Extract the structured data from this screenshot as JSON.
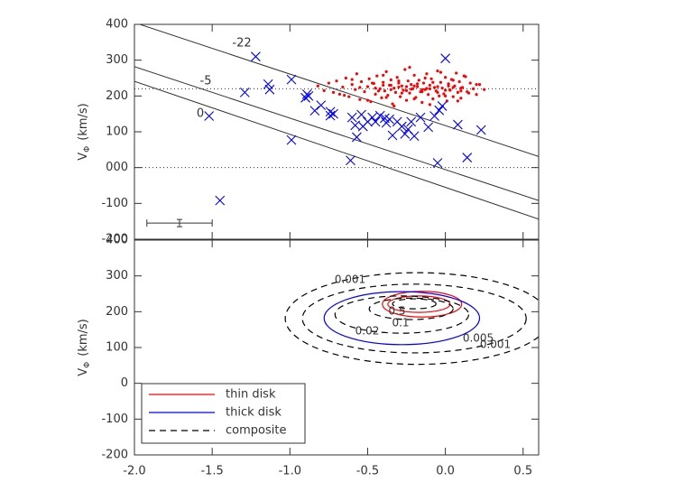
{
  "chart_data": [
    {
      "type": "scatter",
      "xlim": [
        -2.0,
        0.6
      ],
      "ylim": [
        -200,
        400
      ],
      "xticks": [
        -2.0,
        -1.5,
        -1.0,
        -0.5,
        0.0,
        0.5
      ],
      "yticks": [
        -200,
        -100,
        {
          "value": 0,
          "label": "000"
        },
        100,
        200,
        300,
        400
      ],
      "ylabel_symbol": "V",
      "ylabel_subscript": "Φ",
      "ylabel_unit": "(km/s)",
      "series": [
        {
          "color": "#ff0000",
          "marker": "dot",
          "x": [
            -0.82,
            -0.78,
            -0.75,
            -0.72,
            -0.7,
            -0.68,
            -0.66,
            -0.64,
            -0.62,
            -0.6,
            -0.58,
            -0.57,
            -0.55,
            -0.54,
            -0.52,
            -0.5,
            -0.49,
            -0.48,
            -0.46,
            -0.45,
            -0.44,
            -0.42,
            -0.41,
            -0.4,
            -0.39,
            -0.38,
            -0.37,
            -0.36,
            -0.35,
            -0.34,
            -0.33,
            -0.32,
            -0.31,
            -0.3,
            -0.29,
            -0.28,
            -0.27,
            -0.26,
            -0.25,
            -0.24,
            -0.23,
            -0.22,
            -0.21,
            -0.2,
            -0.19,
            -0.18,
            -0.17,
            -0.16,
            -0.15,
            -0.14,
            -0.13,
            -0.12,
            -0.11,
            -0.1,
            -0.09,
            -0.08,
            -0.07,
            -0.06,
            -0.05,
            -0.04,
            -0.03,
            -0.02,
            -0.01,
            0,
            0.01,
            0.02,
            0.03,
            0.04,
            0.05,
            0.06,
            0.07,
            0.08,
            0.09,
            0.1,
            0.11,
            0.12,
            0.14,
            0.16,
            0.18,
            0.2,
            0.22,
            0.25,
            -0.65,
            -0.6,
            -0.55,
            -0.5,
            -0.47,
            -0.43,
            -0.4,
            -0.38,
            -0.35,
            -0.33,
            -0.3,
            -0.28,
            -0.25,
            -0.23,
            -0.2,
            -0.18,
            -0.15,
            -0.13,
            -0.1,
            -0.08,
            -0.05,
            -0.03,
            0,
            0.02,
            0.05,
            0.08,
            0.1,
            0.13,
            0.15,
            0.2,
            -0.45,
            -0.35,
            -0.3,
            -0.25,
            -0.2,
            -0.15,
            -0.1,
            -0.05,
            0,
            0.05,
            0.1,
            -0.4,
            -0.22,
            -0.12,
            0.03
          ],
          "values": [
            228,
            215,
            236,
            210,
            242,
            205,
            225,
            250,
            198,
            232,
            218,
            262,
            190,
            240,
            212,
            226,
            248,
            184,
            235,
            205,
            256,
            220,
            195,
            238,
            214,
            268,
            202,
            230,
            245,
            178,
            222,
            210,
            252,
            236,
            198,
            228,
            216,
            274,
            188,
            242,
            208,
            232,
            220,
            258,
            196,
            226,
            244,
            212,
            182,
            236,
            218,
            262,
            204,
            230,
            248,
            192,
            224,
            214,
            270,
            200,
            238,
            222,
            206,
            252,
            186,
            234,
            216,
            246,
            198,
            228,
            264,
            210,
            240,
            194,
            224,
            256,
            212,
            236,
            220,
            204,
            232,
            218,
            202,
            246,
            224,
            188,
            236,
            214,
            258,
            196,
            230,
            172,
            242,
            208,
            226,
            280,
            192,
            234,
            218,
            250,
            176,
            238,
            210,
            266,
            200,
            228,
            244,
            186,
            222,
            254,
            208,
            232,
            222,
            218,
            225,
            215,
            228,
            212,
            220,
            226,
            216,
            224,
            214,
            230,
            219,
            221,
            217
          ]
        },
        {
          "color": "#0000ff",
          "marker": "x",
          "x": [
            -1.52,
            -1.45,
            -1.29,
            -1.22,
            -1.14,
            -1.13,
            -0.99,
            -0.99,
            -0.89,
            -0.88,
            -0.9,
            -0.84,
            -0.8,
            -0.74,
            -0.74,
            -0.72,
            -0.61,
            -0.58,
            -0.57,
            -0.54,
            -0.5,
            -0.47,
            -0.45,
            -0.42,
            -0.39,
            -0.38,
            -0.36,
            -0.34,
            -0.31,
            -0.28,
            -0.26,
            -0.24,
            -0.22,
            -0.2,
            -0.16,
            -0.11,
            -0.07,
            -0.04,
            -0.02,
            0.0,
            -0.05,
            0.14,
            0.08,
            0.23,
            -0.6,
            -0.53
          ],
          "values": [
            144,
            -92,
            210,
            310,
            233,
            218,
            246,
            77,
            205,
            200,
            195,
            159,
            174,
            156,
            145,
            150,
            20,
            118,
            85,
            148,
            128,
            140,
            128,
            145,
            138,
            125,
            135,
            90,
            128,
            115,
            94,
            107,
            128,
            88,
            140,
            113,
            144,
            160,
            172,
            305,
            13,
            28,
            120,
            105,
            140,
            115
          ]
        }
      ],
      "lines": [
        {
          "label": "-22",
          "x": [
            -2.0,
            0.6
          ],
          "values": [
            405,
            31
          ]
        },
        {
          "label": "-5",
          "x": [
            -2.0,
            0.6
          ],
          "values": [
            282,
            -92
          ]
        },
        {
          "label": "0",
          "x": [
            -2.0,
            0.6
          ],
          "values": [
            241,
            -144
          ]
        }
      ],
      "hlines": [
        220,
        0
      ],
      "errorbar": {
        "x": -1.71,
        "y": -155,
        "xerr": 0.21,
        "yerr": 10
      }
    },
    {
      "type": "contour",
      "xlim": [
        -2.0,
        0.6
      ],
      "ylim": [
        -200,
        400
      ],
      "xticks": [
        {
          "value": -2.0,
          "label": "-2.0"
        },
        -1.5,
        {
          "value": -1.0,
          "label": "-1.0"
        },
        -0.5,
        {
          "value": 0.0,
          "label": "0.0"
        },
        0.5
      ],
      "yticks": [
        -200,
        -100,
        0,
        100,
        200,
        300,
        400
      ],
      "ylabel_symbol": "V",
      "ylabel_subscript": "Φ",
      "ylabel_unit": "(km/s)",
      "contours": [
        {
          "name": "thin disk",
          "color": "#ff0000",
          "dash": false,
          "ellipses": [
            {
              "cx": -0.15,
              "cy": 221,
              "rx": 0.255,
              "ry": 36
            },
            {
              "cx": -0.17,
              "cy": 221,
              "rx": 0.2,
              "ry": 23
            }
          ]
        },
        {
          "name": "thick disk",
          "color": "#0000ff",
          "dash": false,
          "ellipses": [
            {
              "cx": -0.28,
              "cy": 182,
              "rx": 0.5,
              "ry": 74
            }
          ]
        },
        {
          "name": "composite",
          "color": "#000000",
          "dash": true,
          "ellipses": [
            {
              "level": 0.001,
              "cx": -0.18,
              "cy": 181,
              "rx": 0.85,
              "ry": 128
            },
            {
              "level": 0.005,
              "cx": -0.2,
              "cy": 181,
              "rx": 0.72,
              "ry": 96
            },
            {
              "level": 0.02,
              "cx": -0.28,
              "cy": 192,
              "rx": 0.43,
              "ry": 52
            },
            {
              "level": 0.1,
              "cx": -0.22,
              "cy": 208,
              "rx": 0.27,
              "ry": 30
            },
            {
              "level": 0.5,
              "cx": -0.2,
              "cy": 222,
              "rx": 0.14,
              "ry": 14
            }
          ]
        }
      ]
    }
  ]
}
